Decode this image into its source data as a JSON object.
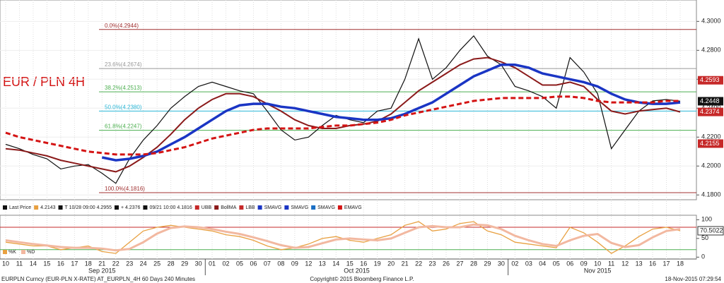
{
  "chart_data": [
    {
      "type": "line",
      "title": "EUR / PLN 4H",
      "categories": [
        "10",
        "11",
        "14",
        "15",
        "16",
        "17",
        "18",
        "21",
        "22",
        "23",
        "24",
        "25",
        "28",
        "29",
        "30",
        "01",
        "02",
        "05",
        "06",
        "07",
        "08",
        "09",
        "12",
        "13",
        "14",
        "15",
        "16",
        "19",
        "20",
        "21",
        "22",
        "23",
        "26",
        "27",
        "28",
        "29",
        "30",
        "02",
        "03",
        "04",
        "05",
        "06",
        "09",
        "10",
        "11",
        "12",
        "13",
        "16",
        "17",
        "18"
      ],
      "months": [
        {
          "label": "Sep 2015",
          "from": 0,
          "to": 14
        },
        {
          "label": "Oct 2015",
          "from": 15,
          "to": 36
        },
        {
          "label": "Nov 2015",
          "from": 37,
          "to": 49
        }
      ],
      "series": [
        {
          "name": "Last Price",
          "color": "#111111",
          "width": 1.2,
          "dash": "",
          "values": [
            4.215,
            4.212,
            4.208,
            4.205,
            4.198,
            4.2,
            4.201,
            4.195,
            4.188,
            4.205,
            4.218,
            4.228,
            4.24,
            4.248,
            4.255,
            4.258,
            4.255,
            4.252,
            4.25,
            4.238,
            4.225,
            4.218,
            4.22,
            4.228,
            4.235,
            4.232,
            4.23,
            4.238,
            4.24,
            4.26,
            4.288,
            4.26,
            4.268,
            4.28,
            4.29,
            4.276,
            4.27,
            4.255,
            4.252,
            4.248,
            4.24,
            4.275,
            4.265,
            4.25,
            4.212,
            4.225,
            4.238,
            4.245,
            4.246,
            4.2448
          ]
        },
        {
          "name": "BollMA",
          "color": "#8b1a1a",
          "width": 2,
          "dash": "",
          "values": [
            4.212,
            4.211,
            4.209,
            4.207,
            4.204,
            4.202,
            4.2,
            4.198,
            4.196,
            4.2,
            4.206,
            4.213,
            4.222,
            4.232,
            4.24,
            4.246,
            4.25,
            4.25,
            4.248,
            4.243,
            4.238,
            4.232,
            4.228,
            4.226,
            4.226,
            4.228,
            4.229,
            4.231,
            4.236,
            4.244,
            4.252,
            4.258,
            4.264,
            4.27,
            4.274,
            4.275,
            4.272,
            4.268,
            4.262,
            4.256,
            4.256,
            4.258,
            4.255,
            4.246,
            4.238,
            4.236,
            4.238,
            4.239,
            4.24,
            4.2374
          ]
        },
        {
          "name": "SMAVG",
          "color": "#1a35c4",
          "width": 3.5,
          "dash": "",
          "values": [
            null,
            null,
            null,
            null,
            null,
            null,
            null,
            4.206,
            4.204,
            4.205,
            4.207,
            4.21,
            4.215,
            4.22,
            4.226,
            4.232,
            4.238,
            4.242,
            4.243,
            4.243,
            4.241,
            4.24,
            4.238,
            4.236,
            4.234,
            4.233,
            4.232,
            4.232,
            4.233,
            4.236,
            4.24,
            4.244,
            4.25,
            4.256,
            4.262,
            4.266,
            4.27,
            4.27,
            4.268,
            4.264,
            4.262,
            4.26,
            4.258,
            4.255,
            4.25,
            4.246,
            4.244,
            4.243,
            4.243,
            4.244
          ]
        },
        {
          "name": "EMAVG",
          "color": "#d41414",
          "width": 3,
          "dash": "7 4",
          "values": [
            4.223,
            4.22,
            4.218,
            4.216,
            4.214,
            4.212,
            4.21,
            4.209,
            4.208,
            4.208,
            4.208,
            4.209,
            4.211,
            4.213,
            4.216,
            4.219,
            4.221,
            4.223,
            4.225,
            4.226,
            4.226,
            4.226,
            4.226,
            4.227,
            4.228,
            4.228,
            4.229,
            4.23,
            4.232,
            4.235,
            4.237,
            4.239,
            4.241,
            4.243,
            4.245,
            4.246,
            4.247,
            4.247,
            4.247,
            4.247,
            4.248,
            4.248,
            4.247,
            4.245,
            4.244,
            4.244,
            4.244,
            4.244,
            4.245,
            4.245
          ]
        }
      ],
      "legend": [
        "Last Price",
        "4.2143",
        "T 10/28 09:00 4.2955",
        "+ 4.2376",
        "09/21 10:00 4.1816",
        "UBB",
        "BollMA",
        "LBB",
        "SMAVG",
        "SMAVG",
        "SMAVG",
        "EMAVG"
      ],
      "fib_levels": [
        {
          "label": "0.0%(4.2944)",
          "value": 4.2944,
          "color": "#a03030"
        },
        {
          "label": "23.6%(4.2674)",
          "value": 4.2674,
          "color": "#999999"
        },
        {
          "label": "38.2%(4.2513)",
          "value": 4.2513,
          "color": "#4caf50"
        },
        {
          "label": "50.0%(4.2380)",
          "value": 4.238,
          "color": "#29b6d6"
        },
        {
          "label": "61.8%(4.2247)",
          "value": 4.2247,
          "color": "#4caf50"
        },
        {
          "label": "100.0%(4.1816)",
          "value": 4.1816,
          "color": "#a03030"
        }
      ],
      "price_tags": [
        {
          "value": 4.2593,
          "color": "#c62828"
        },
        {
          "value": 4.2448,
          "color": "#111111"
        },
        {
          "value": 4.2374,
          "color": "#c62828"
        },
        {
          "value": 4.2155,
          "color": "#c62828"
        }
      ],
      "ylim": [
        4.1767,
        4.3148
      ],
      "yticks": [
        {
          "value": 4.18,
          "label": "4.1800"
        },
        {
          "value": 4.2,
          "label": "4.2000"
        },
        {
          "value": 4.22,
          "label": "4.2200"
        },
        {
          "value": 4.24,
          "label": "4.2400"
        },
        {
          "value": 4.26,
          "label": "4.2600"
        },
        {
          "value": 4.28,
          "label": "4.2800"
        },
        {
          "value": 4.3,
          "label": "4.3000"
        }
      ],
      "grid": true
    },
    {
      "type": "line",
      "series": [
        {
          "name": "%K",
          "color": "#e8a040",
          "width": 1.3,
          "dash": "",
          "values": [
            40,
            35,
            30,
            30,
            20,
            25,
            30,
            15,
            10,
            40,
            70,
            80,
            85,
            80,
            75,
            70,
            60,
            55,
            45,
            30,
            20,
            25,
            35,
            50,
            55,
            45,
            40,
            50,
            60,
            85,
            95,
            70,
            75,
            90,
            95,
            70,
            60,
            40,
            35,
            30,
            25,
            80,
            65,
            40,
            10,
            30,
            55,
            75,
            80,
            70.5022
          ]
        },
        {
          "name": "%D",
          "color": "#f2b8a0",
          "width": 3,
          "dash": "",
          "values": [
            45,
            40,
            35,
            31,
            27,
            25,
            25,
            23,
            18,
            22,
            40,
            63,
            78,
            82,
            80,
            75,
            68,
            62,
            53,
            43,
            32,
            25,
            27,
            37,
            47,
            50,
            47,
            45,
            50,
            65,
            80,
            83,
            80,
            80,
            87,
            85,
            75,
            57,
            45,
            35,
            30,
            45,
            57,
            62,
            38,
            27,
            32,
            53,
            70,
            75
          ]
        }
      ],
      "levels": [
        80,
        20
      ],
      "level_colors": [
        "#c62828",
        "#4caf50"
      ],
      "tag": 70.5022,
      "ylim": [
        -5,
        112
      ],
      "yticks": [
        0,
        50,
        100
      ]
    }
  ],
  "footer": {
    "left": "EURPLN Curncy (EUR-PLN X-RATE) AT_EURPLN_4H 60 Days 240 Minutes",
    "center": "Copyright© 2015 Bloomberg Finance L.P.",
    "right": "18-Nov-2015 07:29:54"
  }
}
